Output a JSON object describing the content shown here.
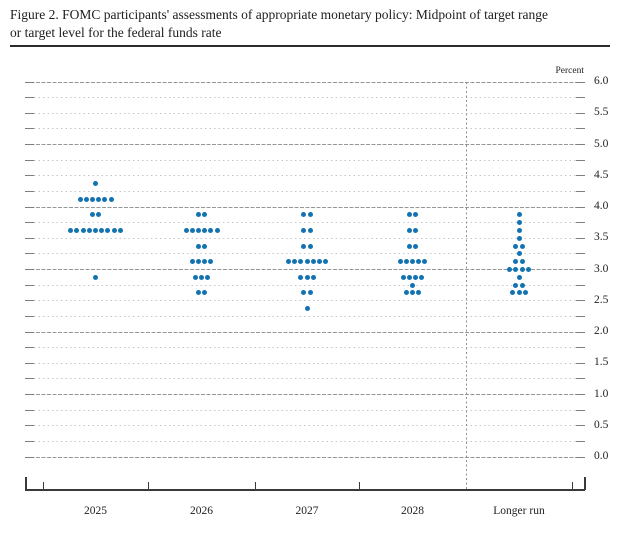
{
  "title": {
    "line1": "Figure 2. FOMC participants' assessments of appropriate monetary policy: Midpoint of target range",
    "line2": "or target level for the federal funds rate"
  },
  "chart_data": {
    "type": "scatter",
    "title": "FOMC participants' assessments of appropriate monetary policy: Midpoint of target range or target level for the federal funds rate",
    "ylabel": "Percent",
    "xlabel": "",
    "ylim": [
      0.0,
      6.0
    ],
    "y_gridline_step": 0.25,
    "y_label_step": 0.5,
    "grid": "dotted horizontal gridlines, darker at integer values",
    "legend_position": "none",
    "dot_color": "#1373b1",
    "categories": [
      "2025",
      "2026",
      "2027",
      "2028",
      "Longer run"
    ],
    "series": [
      {
        "category": "2025",
        "dots": [
          {
            "rate": 4.375,
            "count": 1
          },
          {
            "rate": 4.125,
            "count": 6
          },
          {
            "rate": 3.875,
            "count": 2
          },
          {
            "rate": 3.625,
            "count": 9
          },
          {
            "rate": 2.875,
            "count": 1
          }
        ]
      },
      {
        "category": "2026",
        "dots": [
          {
            "rate": 3.875,
            "count": 2
          },
          {
            "rate": 3.625,
            "count": 6
          },
          {
            "rate": 3.375,
            "count": 2
          },
          {
            "rate": 3.125,
            "count": 4
          },
          {
            "rate": 2.875,
            "count": 3
          },
          {
            "rate": 2.625,
            "count": 2
          }
        ]
      },
      {
        "category": "2027",
        "dots": [
          {
            "rate": 3.875,
            "count": 2
          },
          {
            "rate": 3.625,
            "count": 2
          },
          {
            "rate": 3.375,
            "count": 2
          },
          {
            "rate": 3.125,
            "count": 7
          },
          {
            "rate": 2.875,
            "count": 3
          },
          {
            "rate": 2.625,
            "count": 2
          },
          {
            "rate": 2.375,
            "count": 1
          }
        ]
      },
      {
        "category": "2028",
        "dots": [
          {
            "rate": 3.875,
            "count": 2
          },
          {
            "rate": 3.625,
            "count": 2
          },
          {
            "rate": 3.375,
            "count": 2
          },
          {
            "rate": 3.125,
            "count": 5
          },
          {
            "rate": 2.875,
            "count": 4
          },
          {
            "rate": 2.75,
            "count": 1
          },
          {
            "rate": 2.625,
            "count": 3
          }
        ]
      },
      {
        "category": "Longer run",
        "dots": [
          {
            "rate": 3.875,
            "count": 1
          },
          {
            "rate": 3.75,
            "count": 1
          },
          {
            "rate": 3.625,
            "count": 1
          },
          {
            "rate": 3.5,
            "count": 1
          },
          {
            "rate": 3.375,
            "count": 2
          },
          {
            "rate": 3.25,
            "count": 1
          },
          {
            "rate": 3.125,
            "count": 2
          },
          {
            "rate": 3.0,
            "count": 4
          },
          {
            "rate": 2.875,
            "count": 1
          },
          {
            "rate": 2.75,
            "count": 2
          },
          {
            "rate": 2.625,
            "count": 3
          }
        ]
      }
    ]
  }
}
